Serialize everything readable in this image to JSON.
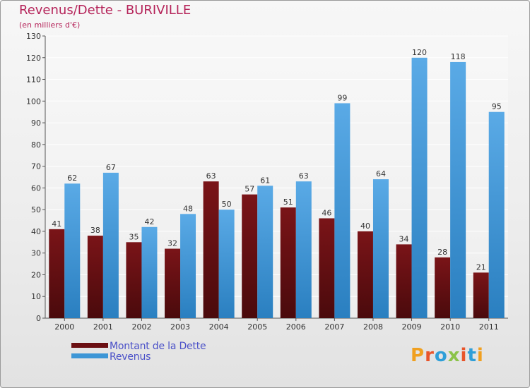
{
  "header": {
    "title": "Revenus/Dette - BURIVILLE",
    "subtitle": "(en milliers d'€)"
  },
  "colors": {
    "title": "#b5245a",
    "dette": "#6b0f12",
    "revenus": "#3d96d6",
    "legend_text": "#4a50c8"
  },
  "legend": {
    "items": [
      {
        "label": "Montant de la Dette",
        "color": "#6b0f12"
      },
      {
        "label": "Revenus",
        "color": "#3d96d6"
      }
    ]
  },
  "logo": {
    "text": "Proxiti",
    "letter_colors": [
      "#f0a020",
      "#e8542a",
      "#2f9fd8",
      "#8bc34a",
      "#e8542a",
      "#2f9fd8",
      "#f0a020"
    ]
  },
  "chart_data": {
    "type": "bar",
    "categories": [
      "2000",
      "2001",
      "2002",
      "2003",
      "2004",
      "2005",
      "2006",
      "2007",
      "2008",
      "2009",
      "2010",
      "2011"
    ],
    "series": [
      {
        "name": "Montant de la Dette",
        "values": [
          41,
          38,
          35,
          32,
          63,
          57,
          51,
          46,
          40,
          34,
          28,
          21
        ]
      },
      {
        "name": "Revenus",
        "values": [
          62,
          67,
          42,
          48,
          50,
          61,
          63,
          99,
          64,
          120,
          118,
          95
        ]
      }
    ],
    "title": "Revenus/Dette - BURIVILLE",
    "ylabel": "(en milliers d'€)",
    "ylim": [
      0,
      130
    ],
    "yticks": [
      0,
      10,
      20,
      30,
      40,
      50,
      60,
      70,
      80,
      90,
      100,
      110,
      120,
      130
    ],
    "grid": true,
    "legend_position": "bottom-left"
  }
}
